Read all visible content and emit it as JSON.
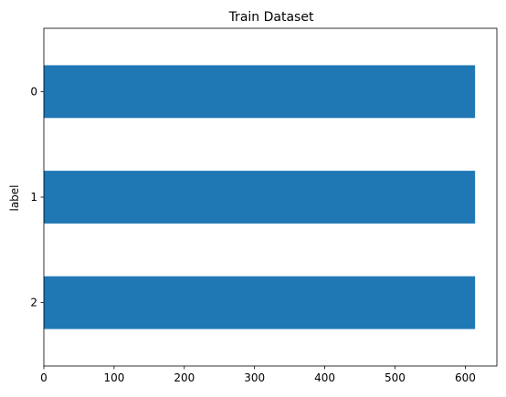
{
  "chart_data": {
    "type": "bar",
    "orientation": "horizontal",
    "title": "Train Dataset",
    "xlabel": "",
    "ylabel": "label",
    "categories": [
      "0",
      "1",
      "2"
    ],
    "values": [
      614,
      614,
      614
    ],
    "xlim": [
      0,
      645
    ],
    "xticks": [
      0,
      100,
      200,
      300,
      400,
      500,
      600
    ],
    "grid": false,
    "legend": "none",
    "bar_color": "#1f77b4"
  }
}
